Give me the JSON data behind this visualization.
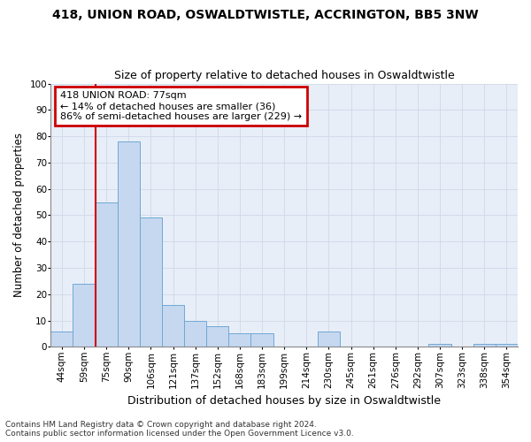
{
  "title1": "418, UNION ROAD, OSWALDTWISTLE, ACCRINGTON, BB5 3NW",
  "title2": "Size of property relative to detached houses in Oswaldtwistle",
  "xlabel": "Distribution of detached houses by size in Oswaldtwistle",
  "ylabel": "Number of detached properties",
  "categories": [
    "44sqm",
    "59sqm",
    "75sqm",
    "90sqm",
    "106sqm",
    "121sqm",
    "137sqm",
    "152sqm",
    "168sqm",
    "183sqm",
    "199sqm",
    "214sqm",
    "230sqm",
    "245sqm",
    "261sqm",
    "276sqm",
    "292sqm",
    "307sqm",
    "323sqm",
    "338sqm",
    "354sqm"
  ],
  "values": [
    6,
    24,
    55,
    78,
    49,
    16,
    10,
    8,
    5,
    5,
    0,
    0,
    6,
    0,
    0,
    0,
    0,
    1,
    0,
    1,
    1
  ],
  "bar_color": "#c5d8f0",
  "bar_edge_color": "#6fa8d5",
  "vline_color": "#cc0000",
  "annotation_text": "418 UNION ROAD: 77sqm\n← 14% of detached houses are smaller (36)\n86% of semi-detached houses are larger (229) →",
  "annotation_box_edgecolor": "#cc0000",
  "ylim": [
    0,
    100
  ],
  "yticks": [
    0,
    10,
    20,
    30,
    40,
    50,
    60,
    70,
    80,
    90,
    100
  ],
  "grid_color": "#d0d8e8",
  "bg_color": "#e8eef8",
  "footnote1": "Contains HM Land Registry data © Crown copyright and database right 2024.",
  "footnote2": "Contains public sector information licensed under the Open Government Licence v3.0.",
  "title1_fontsize": 10,
  "title2_fontsize": 9,
  "xlabel_fontsize": 9,
  "ylabel_fontsize": 8.5,
  "tick_fontsize": 7.5,
  "annot_fontsize": 8,
  "footnote_fontsize": 6.5
}
